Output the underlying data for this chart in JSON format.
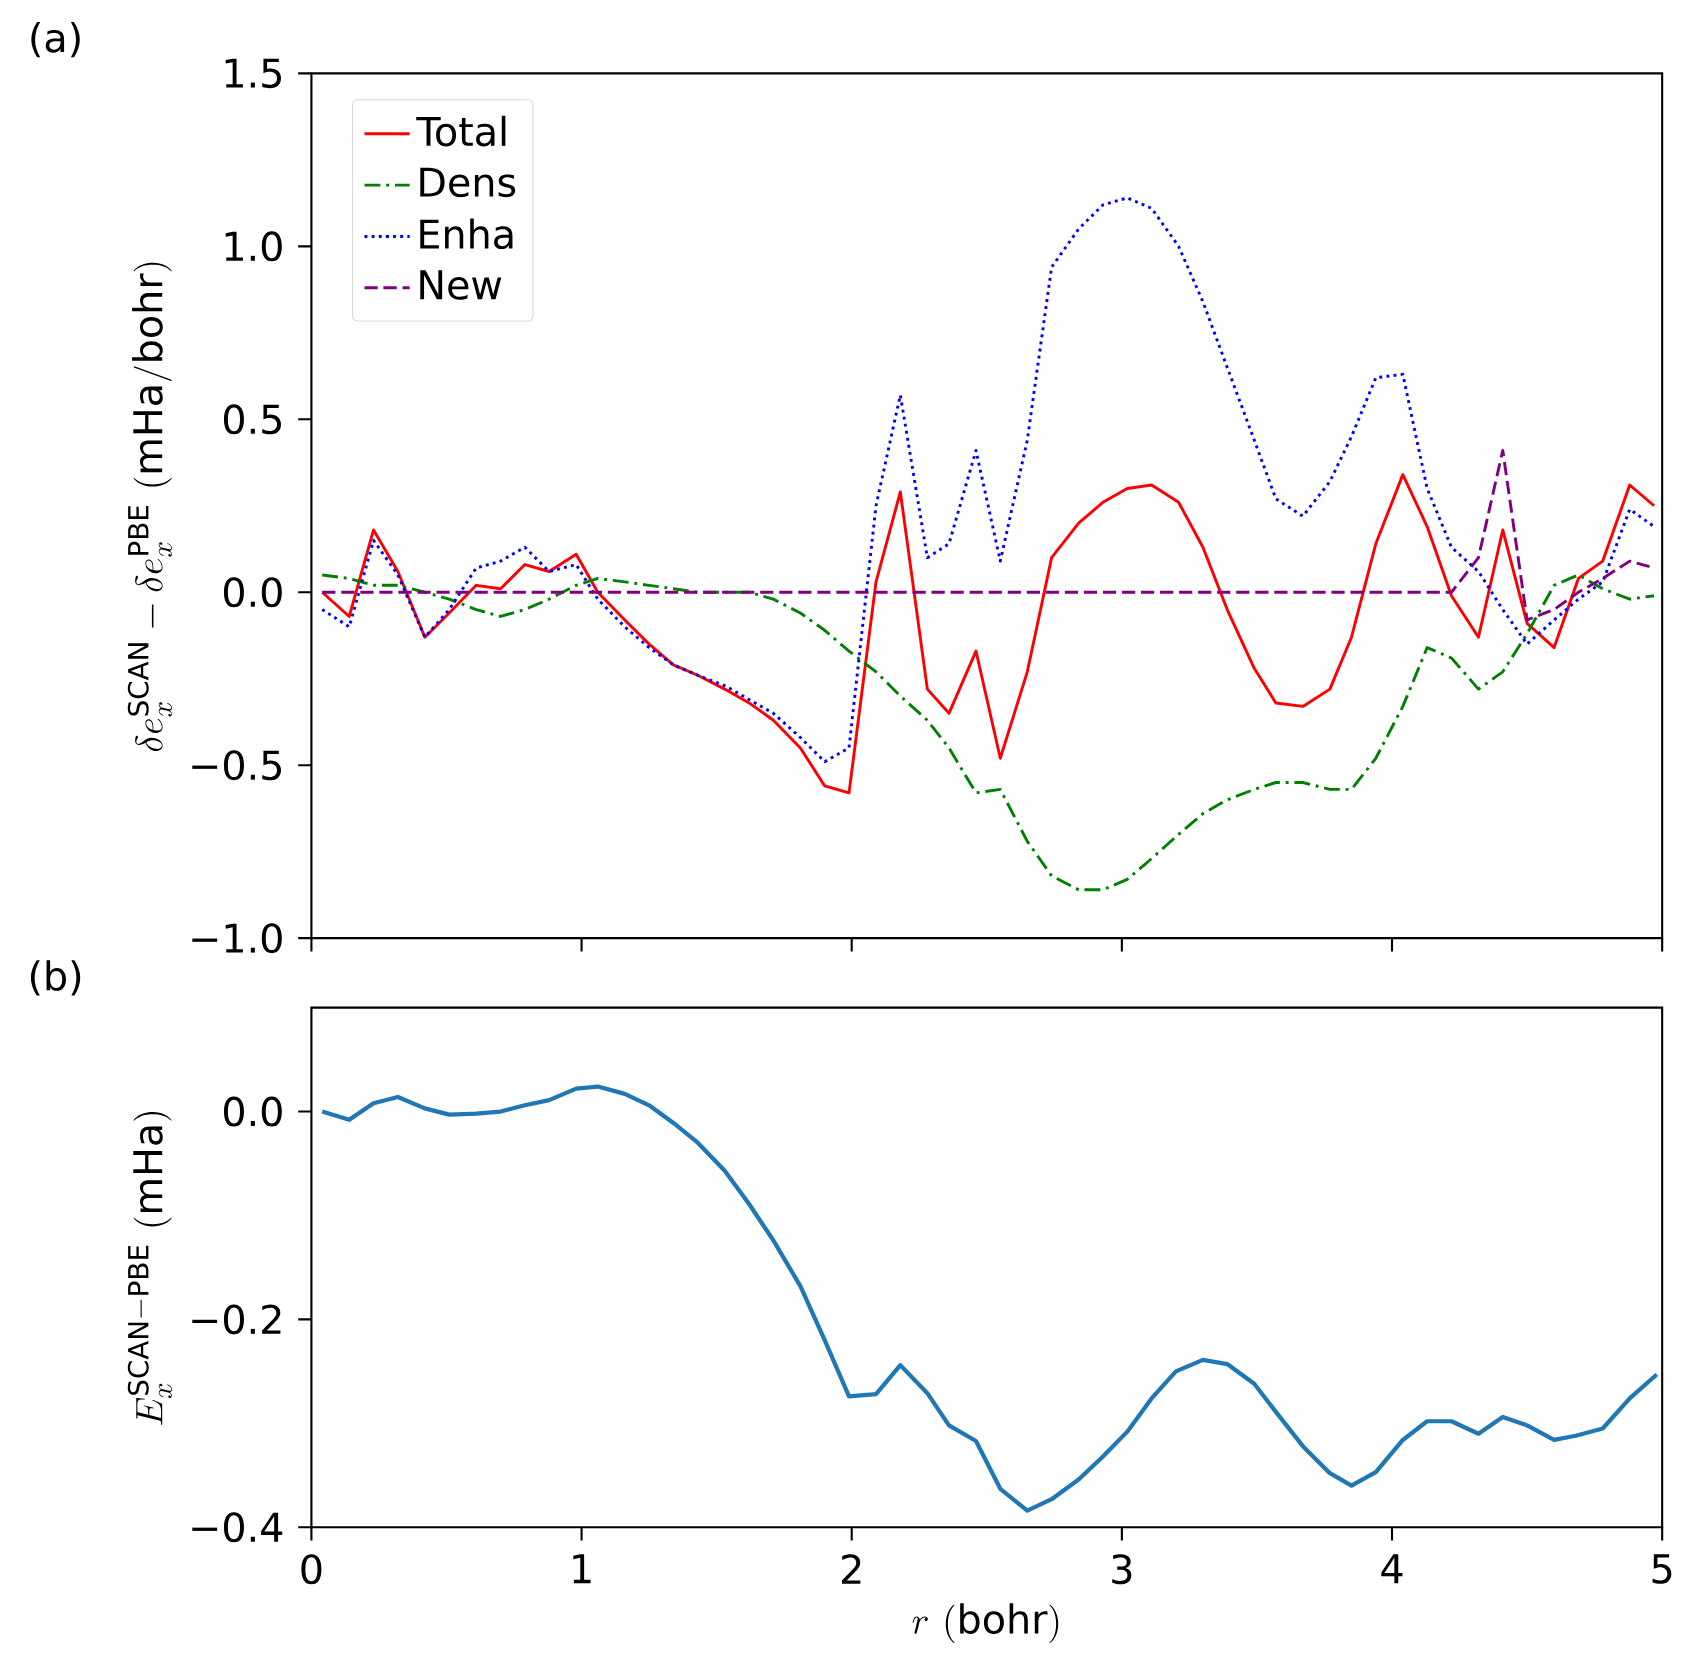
{
  "chart_data": [
    {
      "type": "line",
      "ylabel": "\\delta e_x^{\\mathrm{SCAN}}-\\delta e_x^{\\mathrm{PBE}}\\ (\\mathrm{mHa/bohr})",
      "annotations": [
        "(a)"
      ],
      "legend": "top left",
      "tick_labels": "y",
      "xlim": [
        0,
        5
      ],
      "ylim": [
        -1.0,
        1.5
      ],
      "xticks": [
        {
          "value": 0,
          "label": null
        },
        {
          "value": 1,
          "label": null
        },
        {
          "value": 2,
          "label": null
        },
        {
          "value": 3,
          "label": null
        },
        {
          "value": 4,
          "label": null
        },
        {
          "value": 5,
          "label": null
        }
      ],
      "yticks": [
        {
          "value": -1.0,
          "label": "−1.0"
        },
        {
          "value": -0.5,
          "label": "−0.5"
        },
        {
          "value": 0.0,
          "label": "0.0"
        },
        {
          "value": 0.5,
          "label": "0.5"
        },
        {
          "value": 1.0,
          "label": "1.0"
        },
        {
          "value": 1.5,
          "label": "1.5"
        }
      ],
      "x": [
        0.04,
        0.14,
        0.23,
        0.32,
        0.42,
        0.51,
        0.61,
        0.7,
        0.79,
        0.88,
        0.98,
        1.06,
        1.16,
        1.25,
        1.34,
        1.43,
        1.53,
        1.62,
        1.71,
        1.81,
        1.9,
        1.99,
        2.09,
        2.18,
        2.28,
        2.36,
        2.46,
        2.55,
        2.65,
        2.74,
        2.84,
        2.93,
        3.02,
        3.11,
        3.21,
        3.3,
        3.39,
        3.49,
        3.57,
        3.67,
        3.77,
        3.85,
        3.94,
        4.04,
        4.13,
        4.22,
        4.32,
        4.41,
        4.5,
        4.6,
        4.69,
        4.78,
        4.88,
        4.97
      ],
      "series": [
        {
          "name": "Total",
          "color": "#ff0000",
          "line_style": "solid",
          "values": [
            0.0,
            -0.07,
            0.18,
            0.06,
            -0.13,
            -0.06,
            0.02,
            0.01,
            0.08,
            0.06,
            0.11,
            0.0,
            -0.08,
            -0.15,
            -0.21,
            -0.24,
            -0.28,
            -0.32,
            -0.37,
            -0.45,
            -0.56,
            -0.58,
            0.03,
            0.29,
            -0.28,
            -0.35,
            -0.17,
            -0.48,
            -0.23,
            0.1,
            0.2,
            0.26,
            0.3,
            0.31,
            0.26,
            0.13,
            -0.05,
            -0.22,
            -0.32,
            -0.33,
            -0.28,
            -0.13,
            0.14,
            0.34,
            0.19,
            -0.01,
            -0.13,
            0.18,
            -0.09,
            -0.16,
            0.04,
            0.09,
            0.31,
            0.25
          ]
        },
        {
          "name": "Dens",
          "color": "#008000",
          "line_style": "dashdot",
          "values": [
            0.05,
            0.04,
            0.02,
            0.02,
            0.0,
            -0.02,
            -0.05,
            -0.07,
            -0.05,
            -0.02,
            0.02,
            0.04,
            0.03,
            0.02,
            0.01,
            0.0,
            0.0,
            0.0,
            -0.02,
            -0.06,
            -0.11,
            -0.17,
            -0.23,
            -0.3,
            -0.37,
            -0.45,
            -0.58,
            -0.57,
            -0.72,
            -0.82,
            -0.86,
            -0.86,
            -0.83,
            -0.77,
            -0.7,
            -0.64,
            -0.6,
            -0.57,
            -0.55,
            -0.55,
            -0.57,
            -0.57,
            -0.48,
            -0.33,
            -0.16,
            -0.19,
            -0.28,
            -0.23,
            -0.12,
            0.02,
            0.05,
            0.01,
            -0.02,
            -0.01
          ]
        },
        {
          "name": "Enha",
          "color": "#0000ff",
          "line_style": "dotted",
          "values": [
            -0.05,
            -0.1,
            0.15,
            0.05,
            -0.13,
            -0.05,
            0.07,
            0.09,
            0.13,
            0.06,
            0.08,
            -0.02,
            -0.1,
            -0.16,
            -0.21,
            -0.24,
            -0.27,
            -0.31,
            -0.35,
            -0.42,
            -0.49,
            -0.45,
            0.25,
            0.57,
            0.1,
            0.14,
            0.41,
            0.09,
            0.44,
            0.94,
            1.05,
            1.12,
            1.14,
            1.11,
            1.0,
            0.84,
            0.65,
            0.44,
            0.27,
            0.22,
            0.32,
            0.45,
            0.62,
            0.63,
            0.3,
            0.13,
            0.06,
            -0.05,
            -0.15,
            -0.08,
            -0.02,
            0.03,
            0.24,
            0.19
          ]
        },
        {
          "name": "New",
          "color": "#800080",
          "line_style": "dashed",
          "values": [
            0,
            0,
            0,
            0,
            0,
            0,
            0,
            0,
            0,
            0,
            0,
            0,
            0,
            0,
            0,
            0,
            0,
            0,
            0,
            0,
            0,
            0,
            0,
            0,
            0,
            0,
            0,
            0,
            0,
            0,
            0,
            0,
            0,
            0,
            0,
            0,
            0,
            0,
            0,
            0,
            0,
            0,
            0,
            0,
            0,
            0,
            0.1,
            0.41,
            -0.08,
            -0.05,
            0.0,
            0.04,
            0.09,
            0.07
          ]
        }
      ]
    },
    {
      "type": "line",
      "xlabel": "r\\ (\\mathrm{bohr})",
      "ylabel": "E_x^{\\mathrm{SCAN-PBE}}\\ (\\mathrm{mHa})",
      "annotations": [
        "(b)"
      ],
      "xlim": [
        0,
        5
      ],
      "ylim": [
        -0.4,
        0.1
      ],
      "xticks": [
        0,
        1,
        2,
        3,
        4,
        5
      ],
      "yticks": [
        {
          "value": -0.4,
          "label": "−0.4"
        },
        {
          "value": -0.2,
          "label": "−0.2"
        },
        {
          "value": 0.0,
          "label": "0.0"
        }
      ],
      "x": [
        0.04,
        0.14,
        0.23,
        0.32,
        0.42,
        0.51,
        0.61,
        0.7,
        0.79,
        0.88,
        0.98,
        1.06,
        1.16,
        1.25,
        1.34,
        1.43,
        1.53,
        1.62,
        1.71,
        1.81,
        1.9,
        1.99,
        2.09,
        2.18,
        2.28,
        2.36,
        2.46,
        2.55,
        2.65,
        2.74,
        2.84,
        2.93,
        3.02,
        3.11,
        3.2,
        3.3,
        3.39,
        3.49,
        3.57,
        3.67,
        3.77,
        3.85,
        3.94,
        4.04,
        4.13,
        4.22,
        4.32,
        4.41,
        4.5,
        4.6,
        4.68,
        4.78,
        4.88,
        4.98
      ],
      "series": [
        {
          "color": "#1f77b4",
          "line_style": "solid",
          "values": [
            0.0,
            -0.008,
            0.008,
            0.014,
            0.003,
            -0.003,
            -0.002,
            0.0,
            0.006,
            0.011,
            0.022,
            0.024,
            0.017,
            0.006,
            -0.011,
            -0.03,
            -0.057,
            -0.089,
            -0.124,
            -0.168,
            -0.22,
            -0.274,
            -0.272,
            -0.244,
            -0.271,
            -0.302,
            -0.317,
            -0.363,
            -0.384,
            -0.373,
            -0.354,
            -0.332,
            -0.308,
            -0.276,
            -0.25,
            -0.239,
            -0.243,
            -0.262,
            -0.289,
            -0.322,
            -0.348,
            -0.36,
            -0.347,
            -0.316,
            -0.298,
            -0.298,
            -0.31,
            -0.294,
            -0.302,
            -0.316,
            -0.312,
            -0.305,
            -0.276,
            -0.253
          ]
        }
      ]
    }
  ]
}
